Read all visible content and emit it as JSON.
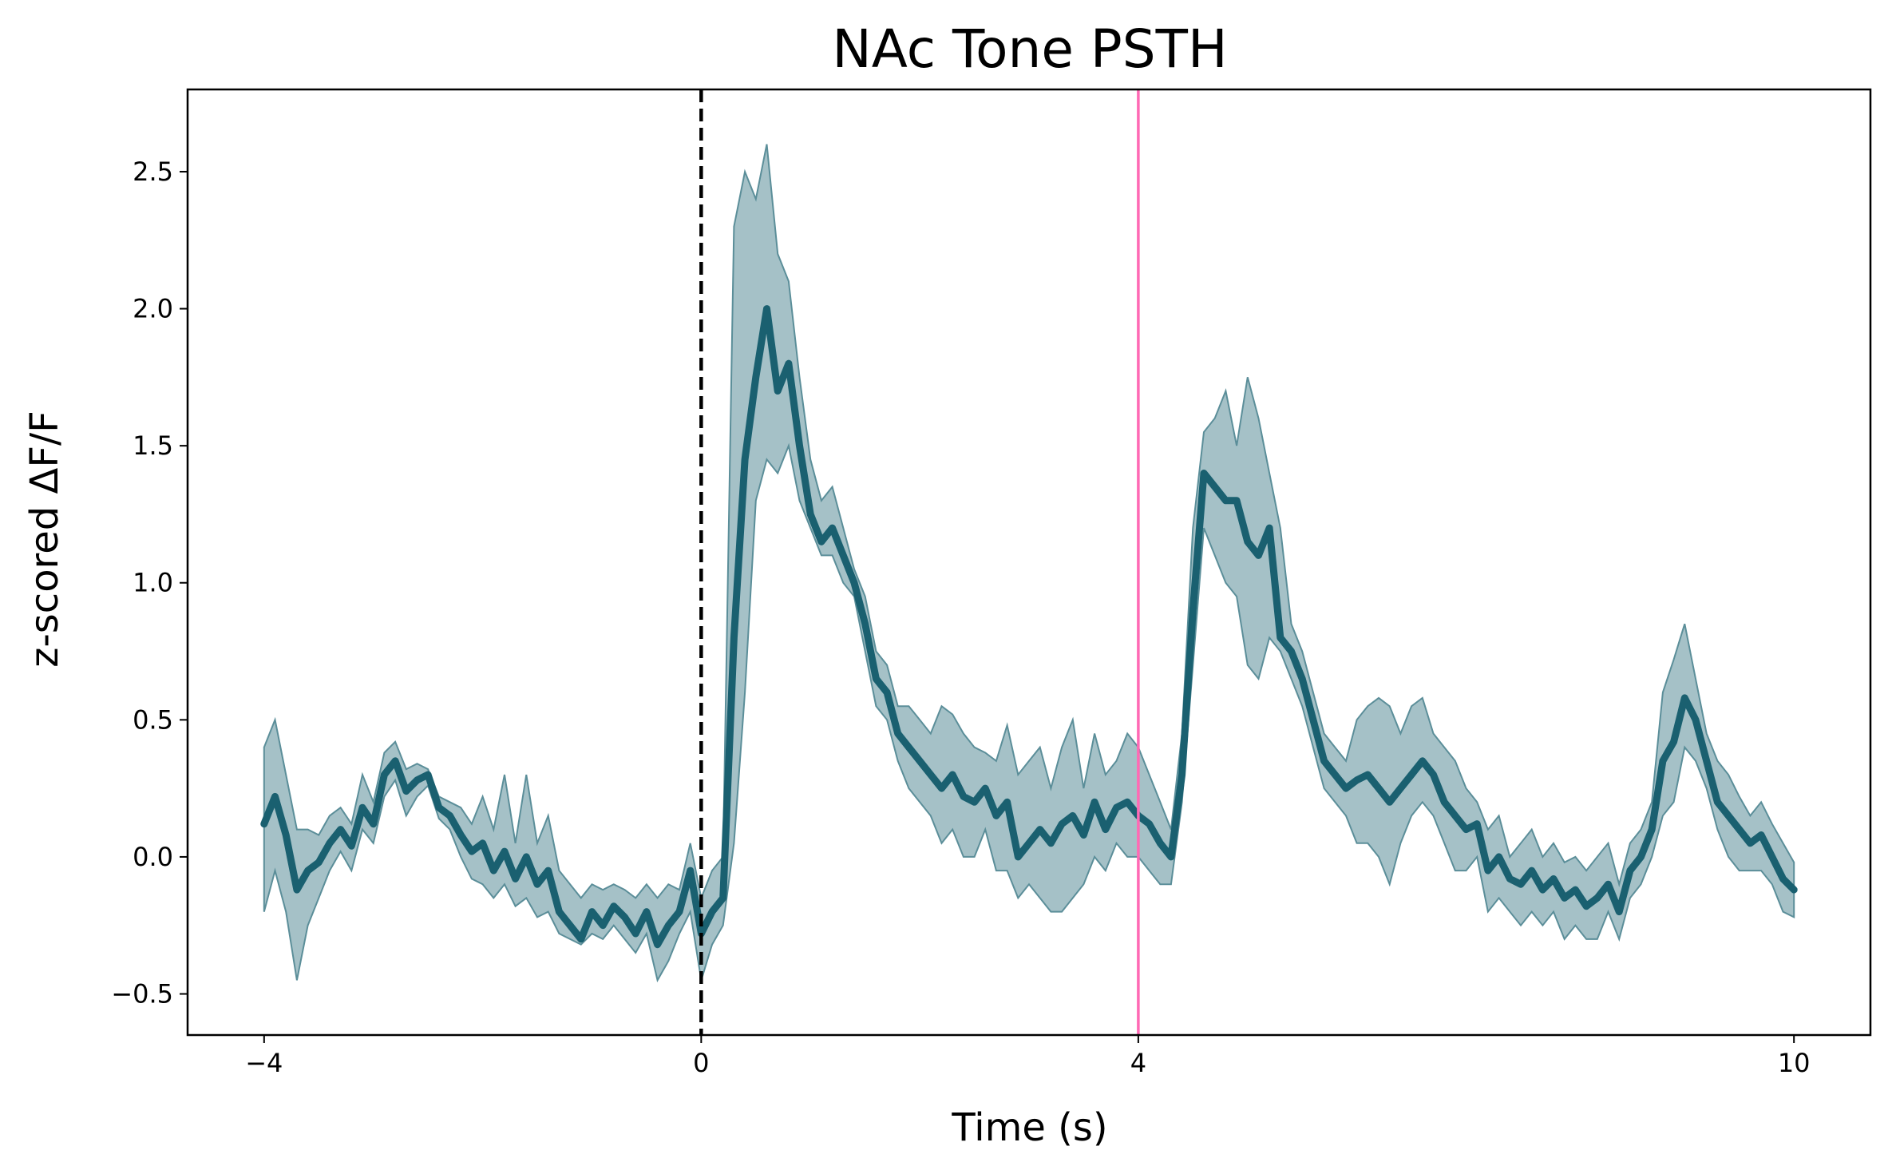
{
  "chart_data": {
    "type": "line",
    "title": "NAc Tone PSTH",
    "xlabel": "Time (s)",
    "ylabel": "z-scored ΔF/F",
    "xlim": [
      -4.7,
      10.7
    ],
    "ylim": [
      -0.65,
      2.8
    ],
    "xticks": [
      -4,
      0,
      4,
      10
    ],
    "xtick_labels": [
      "−4",
      "0",
      "4",
      "10"
    ],
    "yticks": [
      -0.5,
      0.0,
      0.5,
      1.0,
      1.5,
      2.0,
      2.5
    ],
    "ytick_labels": [
      "−0.5",
      "0.0",
      "0.5",
      "1.0",
      "1.5",
      "2.0",
      "2.5"
    ],
    "grid": false,
    "legend": "none",
    "vertical_lines": [
      {
        "x": 0,
        "style": "dashed",
        "color": "#000000"
      },
      {
        "x": 4,
        "style": "solid",
        "color": "#ff69b4"
      }
    ],
    "colors": {
      "mean": "#1a6070",
      "band": "#5b8e99"
    },
    "series": [
      {
        "x": [
          -4.0,
          -3.9,
          -3.8,
          -3.7,
          -3.6,
          -3.5,
          -3.4,
          -3.3,
          -3.2,
          -3.1,
          -3.0,
          -2.9,
          -2.8,
          -2.7,
          -2.6,
          -2.5,
          -2.4,
          -2.3,
          -2.2,
          -2.1,
          -2.0,
          -1.9,
          -1.8,
          -1.7,
          -1.6,
          -1.5,
          -1.4,
          -1.3,
          -1.2,
          -1.1,
          -1.0,
          -0.9,
          -0.8,
          -0.7,
          -0.6,
          -0.5,
          -0.4,
          -0.3,
          -0.2,
          -0.1,
          0.0,
          0.1,
          0.2,
          0.3,
          0.4,
          0.5,
          0.6,
          0.7,
          0.8,
          0.9,
          1.0,
          1.1,
          1.2,
          1.3,
          1.4,
          1.5,
          1.6,
          1.7,
          1.8,
          1.9,
          2.0,
          2.1,
          2.2,
          2.3,
          2.4,
          2.5,
          2.6,
          2.7,
          2.8,
          2.9,
          3.0,
          3.1,
          3.2,
          3.3,
          3.4,
          3.5,
          3.6,
          3.7,
          3.8,
          3.9,
          4.0,
          4.1,
          4.2,
          4.3,
          4.4,
          4.5,
          4.6,
          4.7,
          4.8,
          4.9,
          5.0,
          5.1,
          5.2,
          5.3,
          5.4,
          5.5,
          5.6,
          5.7,
          5.8,
          5.9,
          6.0,
          6.1,
          6.2,
          6.3,
          6.4,
          6.5,
          6.6,
          6.7,
          6.8,
          6.9,
          7.0,
          7.1,
          7.2,
          7.3,
          7.4,
          7.5,
          7.6,
          7.7,
          7.8,
          7.9,
          8.0,
          8.1,
          8.2,
          8.3,
          8.4,
          8.5,
          8.6,
          8.7,
          8.8,
          8.9,
          9.0,
          9.1,
          9.2,
          9.3,
          9.4,
          9.5,
          9.6,
          9.7,
          9.8,
          9.9,
          10.0
        ],
        "y": [
          0.12,
          0.22,
          0.08,
          -0.12,
          -0.05,
          -0.02,
          0.05,
          0.1,
          0.04,
          0.18,
          0.12,
          0.3,
          0.35,
          0.24,
          0.28,
          0.3,
          0.18,
          0.15,
          0.08,
          0.02,
          0.05,
          -0.05,
          0.02,
          -0.08,
          0.0,
          -0.1,
          -0.05,
          -0.2,
          -0.25,
          -0.3,
          -0.2,
          -0.25,
          -0.18,
          -0.22,
          -0.28,
          -0.2,
          -0.32,
          -0.25,
          -0.2,
          -0.05,
          -0.28,
          -0.2,
          -0.15,
          0.8,
          1.45,
          1.75,
          2.0,
          1.7,
          1.8,
          1.5,
          1.25,
          1.15,
          1.2,
          1.1,
          1.0,
          0.85,
          0.65,
          0.6,
          0.45,
          0.4,
          0.35,
          0.3,
          0.25,
          0.3,
          0.22,
          0.2,
          0.25,
          0.15,
          0.2,
          0.0,
          0.05,
          0.1,
          0.05,
          0.12,
          0.15,
          0.08,
          0.2,
          0.1,
          0.18,
          0.2,
          0.15,
          0.12,
          0.05,
          0.0,
          0.3,
          0.9,
          1.4,
          1.35,
          1.3,
          1.3,
          1.15,
          1.1,
          1.2,
          0.8,
          0.75,
          0.65,
          0.5,
          0.35,
          0.3,
          0.25,
          0.28,
          0.3,
          0.25,
          0.2,
          0.25,
          0.3,
          0.35,
          0.3,
          0.2,
          0.15,
          0.1,
          0.12,
          -0.05,
          0.0,
          -0.08,
          -0.1,
          -0.05,
          -0.12,
          -0.08,
          -0.15,
          -0.12,
          -0.18,
          -0.15,
          -0.1,
          -0.2,
          -0.05,
          0.0,
          0.1,
          0.35,
          0.42,
          0.58,
          0.5,
          0.35,
          0.2,
          0.15,
          0.1,
          0.05,
          0.08,
          0.0,
          -0.08,
          -0.12
        ],
        "upper": [
          0.4,
          0.5,
          0.3,
          0.1,
          0.1,
          0.08,
          0.15,
          0.18,
          0.12,
          0.3,
          0.2,
          0.38,
          0.42,
          0.32,
          0.34,
          0.32,
          0.22,
          0.2,
          0.18,
          0.12,
          0.22,
          0.1,
          0.3,
          0.05,
          0.3,
          0.05,
          0.15,
          -0.05,
          -0.1,
          -0.15,
          -0.1,
          -0.12,
          -0.1,
          -0.12,
          -0.15,
          -0.1,
          -0.15,
          -0.1,
          -0.12,
          0.05,
          -0.15,
          -0.05,
          0.0,
          2.3,
          2.5,
          2.4,
          2.6,
          2.2,
          2.1,
          1.75,
          1.45,
          1.3,
          1.35,
          1.2,
          1.05,
          0.95,
          0.75,
          0.7,
          0.55,
          0.55,
          0.5,
          0.45,
          0.55,
          0.52,
          0.45,
          0.4,
          0.38,
          0.35,
          0.48,
          0.3,
          0.35,
          0.4,
          0.25,
          0.4,
          0.5,
          0.25,
          0.45,
          0.3,
          0.35,
          0.45,
          0.4,
          0.3,
          0.2,
          0.1,
          0.45,
          1.2,
          1.55,
          1.6,
          1.7,
          1.5,
          1.75,
          1.6,
          1.4,
          1.2,
          0.85,
          0.75,
          0.6,
          0.45,
          0.4,
          0.35,
          0.5,
          0.55,
          0.58,
          0.55,
          0.45,
          0.55,
          0.58,
          0.45,
          0.4,
          0.35,
          0.25,
          0.2,
          0.1,
          0.15,
          0.0,
          0.05,
          0.1,
          0.0,
          0.05,
          -0.02,
          0.0,
          -0.05,
          0.0,
          0.05,
          -0.1,
          0.05,
          0.1,
          0.2,
          0.6,
          0.72,
          0.85,
          0.65,
          0.45,
          0.35,
          0.3,
          0.22,
          0.15,
          0.2,
          0.12,
          0.05,
          -0.02
        ],
        "lower": [
          -0.2,
          -0.05,
          -0.2,
          -0.45,
          -0.25,
          -0.15,
          -0.05,
          0.02,
          -0.05,
          0.1,
          0.05,
          0.22,
          0.28,
          0.15,
          0.22,
          0.26,
          0.14,
          0.1,
          0.0,
          -0.08,
          -0.1,
          -0.15,
          -0.1,
          -0.18,
          -0.15,
          -0.22,
          -0.2,
          -0.28,
          -0.3,
          -0.32,
          -0.28,
          -0.3,
          -0.25,
          -0.3,
          -0.35,
          -0.28,
          -0.45,
          -0.38,
          -0.28,
          -0.2,
          -0.45,
          -0.32,
          -0.25,
          0.05,
          0.6,
          1.3,
          1.45,
          1.4,
          1.5,
          1.3,
          1.2,
          1.1,
          1.1,
          1.0,
          0.95,
          0.75,
          0.55,
          0.5,
          0.35,
          0.25,
          0.2,
          0.15,
          0.05,
          0.1,
          0.0,
          0.0,
          0.1,
          -0.05,
          -0.05,
          -0.15,
          -0.1,
          -0.15,
          -0.2,
          -0.2,
          -0.15,
          -0.1,
          0.0,
          -0.05,
          0.05,
          0.0,
          0.0,
          -0.05,
          -0.1,
          -0.1,
          0.2,
          0.7,
          1.2,
          1.1,
          1.0,
          0.95,
          0.7,
          0.65,
          0.8,
          0.75,
          0.65,
          0.55,
          0.4,
          0.25,
          0.2,
          0.15,
          0.05,
          0.05,
          0.0,
          -0.1,
          0.05,
          0.15,
          0.2,
          0.15,
          0.05,
          -0.05,
          -0.05,
          0.0,
          -0.2,
          -0.15,
          -0.2,
          -0.25,
          -0.2,
          -0.25,
          -0.2,
          -0.3,
          -0.25,
          -0.3,
          -0.3,
          -0.2,
          -0.3,
          -0.15,
          -0.1,
          0.0,
          0.15,
          0.2,
          0.4,
          0.35,
          0.25,
          0.1,
          0.0,
          -0.05,
          -0.05,
          -0.05,
          -0.1,
          -0.2,
          -0.22
        ]
      }
    ]
  }
}
